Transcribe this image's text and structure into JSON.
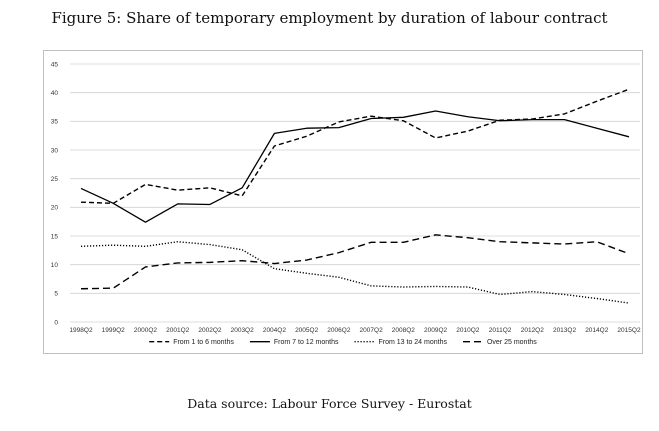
{
  "figure": {
    "caption": "Figure 5: Share of temporary employment by duration of labour contract",
    "source": "Data source: Labour Force Survey - Eurostat"
  },
  "chart_data": {
    "type": "line",
    "title": "",
    "xlabel": "",
    "ylabel": "",
    "ylim": [
      0,
      45
    ],
    "yticks": [
      0,
      5,
      10,
      15,
      20,
      25,
      30,
      35,
      40,
      45
    ],
    "grid": true,
    "legend_position": "bottom",
    "categories": [
      "1998Q2",
      "1999Q2",
      "2000Q2",
      "2001Q2",
      "2002Q2",
      "2003Q2",
      "2004Q2",
      "2005Q2",
      "2006Q2",
      "2007Q2",
      "2008Q2",
      "2009Q2",
      "2010Q2",
      "2011Q2",
      "2012Q2",
      "2013Q2",
      "2014Q2",
      "2015Q2"
    ],
    "series": [
      {
        "name": "From 1 to 6 months",
        "style": "dashed",
        "color": "#000000",
        "values": [
          20.9,
          20.7,
          24.0,
          23.0,
          23.4,
          22.0,
          30.7,
          32.4,
          34.9,
          35.9,
          35.1,
          32.1,
          33.3,
          35.2,
          35.4,
          36.3,
          38.5,
          40.6
        ]
      },
      {
        "name": "From 7 to 12 months",
        "style": "solid",
        "color": "#000000",
        "values": [
          23.3,
          20.7,
          17.4,
          20.6,
          20.5,
          23.4,
          32.9,
          33.8,
          33.9,
          35.5,
          35.7,
          36.8,
          35.8,
          35.1,
          35.3,
          35.3,
          33.8,
          32.3
        ]
      },
      {
        "name": "From 13 to 24 months",
        "style": "dotted",
        "color": "#000000",
        "values": [
          13.2,
          13.4,
          13.2,
          14.0,
          13.5,
          12.6,
          9.3,
          8.5,
          7.8,
          6.3,
          6.1,
          6.2,
          6.1,
          4.8,
          5.3,
          4.8,
          4.1,
          3.3
        ]
      },
      {
        "name": "Over 25 months",
        "style": "longdash",
        "color": "#000000",
        "values": [
          5.8,
          5.9,
          9.6,
          10.3,
          10.4,
          10.7,
          10.2,
          10.8,
          12.1,
          13.9,
          13.9,
          15.2,
          14.7,
          14.0,
          13.8,
          13.6,
          14.0,
          11.9
        ]
      }
    ]
  }
}
